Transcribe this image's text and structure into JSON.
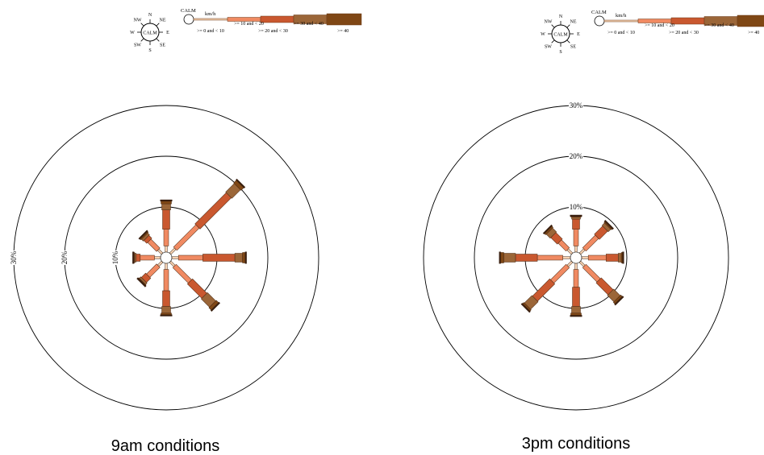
{
  "legend": {
    "compass": {
      "center_label": "CALM",
      "directions": [
        "N",
        "NE",
        "E",
        "SE",
        "S",
        "SW",
        "W",
        "NW"
      ]
    },
    "calm_label": "CALM",
    "unit": "km/h",
    "bins": [
      {
        "label": ">= 0 and < 10",
        "color": "#f7d3b2"
      },
      {
        "label": ">= 10 and < 20",
        "color": "#f08a62"
      },
      {
        "label": ">= 20 and < 30",
        "color": "#c9582f"
      },
      {
        "label": ">= 30 and < 40",
        "color": "#9b6638"
      },
      {
        "label": ">= 40",
        "color": "#7f4715"
      }
    ]
  },
  "colors": {
    "bin_fill": [
      "#f7d3b2",
      "#f08a62",
      "#c9582f",
      "#9b6638",
      "#7f4715"
    ],
    "outline": "#3a2010",
    "circle": "#000000"
  },
  "chart_data": [
    {
      "type": "wind-rose",
      "title": "9am conditions",
      "ring_labels": [
        "10%",
        "20%",
        "30%"
      ],
      "rings": [
        10,
        20,
        30
      ],
      "directions": [
        "N",
        "NE",
        "E",
        "SE",
        "S",
        "SW",
        "W",
        "NW"
      ],
      "bins": [
        ">= 0 and < 10",
        ">= 10 and < 20",
        ">= 20 and < 30",
        ">= 30 and < 40",
        ">= 40"
      ],
      "series": [
        {
          "direction": "N",
          "values": [
            1.2,
            3.3,
            3.8,
            1.2,
            0.6
          ]
        },
        {
          "direction": "NE",
          "values": [
            1.4,
            6.2,
            8.7,
            2.4,
            0.8
          ]
        },
        {
          "direction": "E",
          "values": [
            1.3,
            4.8,
            6.3,
            1.5,
            0.6
          ]
        },
        {
          "direction": "SE",
          "values": [
            1.2,
            4.3,
            4.0,
            2.3,
            0.7
          ]
        },
        {
          "direction": "S",
          "values": [
            1.2,
            4.2,
            3.1,
            1.3,
            0.4
          ]
        },
        {
          "direction": "SW",
          "values": [
            1.1,
            2.8,
            1.2,
            0.4,
            0.2
          ]
        },
        {
          "direction": "W",
          "values": [
            1.2,
            2.8,
            0.8,
            0.3,
            0.2
          ]
        },
        {
          "direction": "NW",
          "values": [
            1.1,
            2.5,
            0.8,
            0.5,
            0.3
          ]
        }
      ]
    },
    {
      "type": "wind-rose",
      "title": "3pm conditions",
      "ring_labels": [
        "10%",
        "20%",
        "30%"
      ],
      "rings": [
        10,
        20,
        30
      ],
      "directions": [
        "N",
        "NE",
        "E",
        "SE",
        "S",
        "SW",
        "W",
        "NW"
      ],
      "bins": [
        ">= 0 and < 10",
        ">= 10 and < 20",
        ">= 20 and < 30",
        ">= 30 and < 40",
        ">= 40"
      ],
      "series": [
        {
          "direction": "N",
          "values": [
            1.2,
            3.3,
            2.0,
            0.4,
            0.2
          ]
        },
        {
          "direction": "NE",
          "values": [
            1.2,
            3.5,
            2.3,
            0.7,
            0.3
          ]
        },
        {
          "direction": "E",
          "values": [
            1.3,
            3.5,
            2.4,
            0.6,
            0.3
          ]
        },
        {
          "direction": "SE",
          "values": [
            1.2,
            4.0,
            3.3,
            1.8,
            0.5
          ]
        },
        {
          "direction": "S",
          "values": [
            1.2,
            3.5,
            3.8,
            1.3,
            0.5
          ]
        },
        {
          "direction": "SW",
          "values": [
            1.2,
            4.3,
            4.8,
            2.1,
            0.4
          ]
        },
        {
          "direction": "W",
          "values": [
            1.5,
            5.0,
            4.3,
            2.3,
            0.7
          ]
        },
        {
          "direction": "NW",
          "values": [
            1.2,
            2.2,
            1.8,
            1.1,
            0.4
          ]
        }
      ]
    }
  ]
}
